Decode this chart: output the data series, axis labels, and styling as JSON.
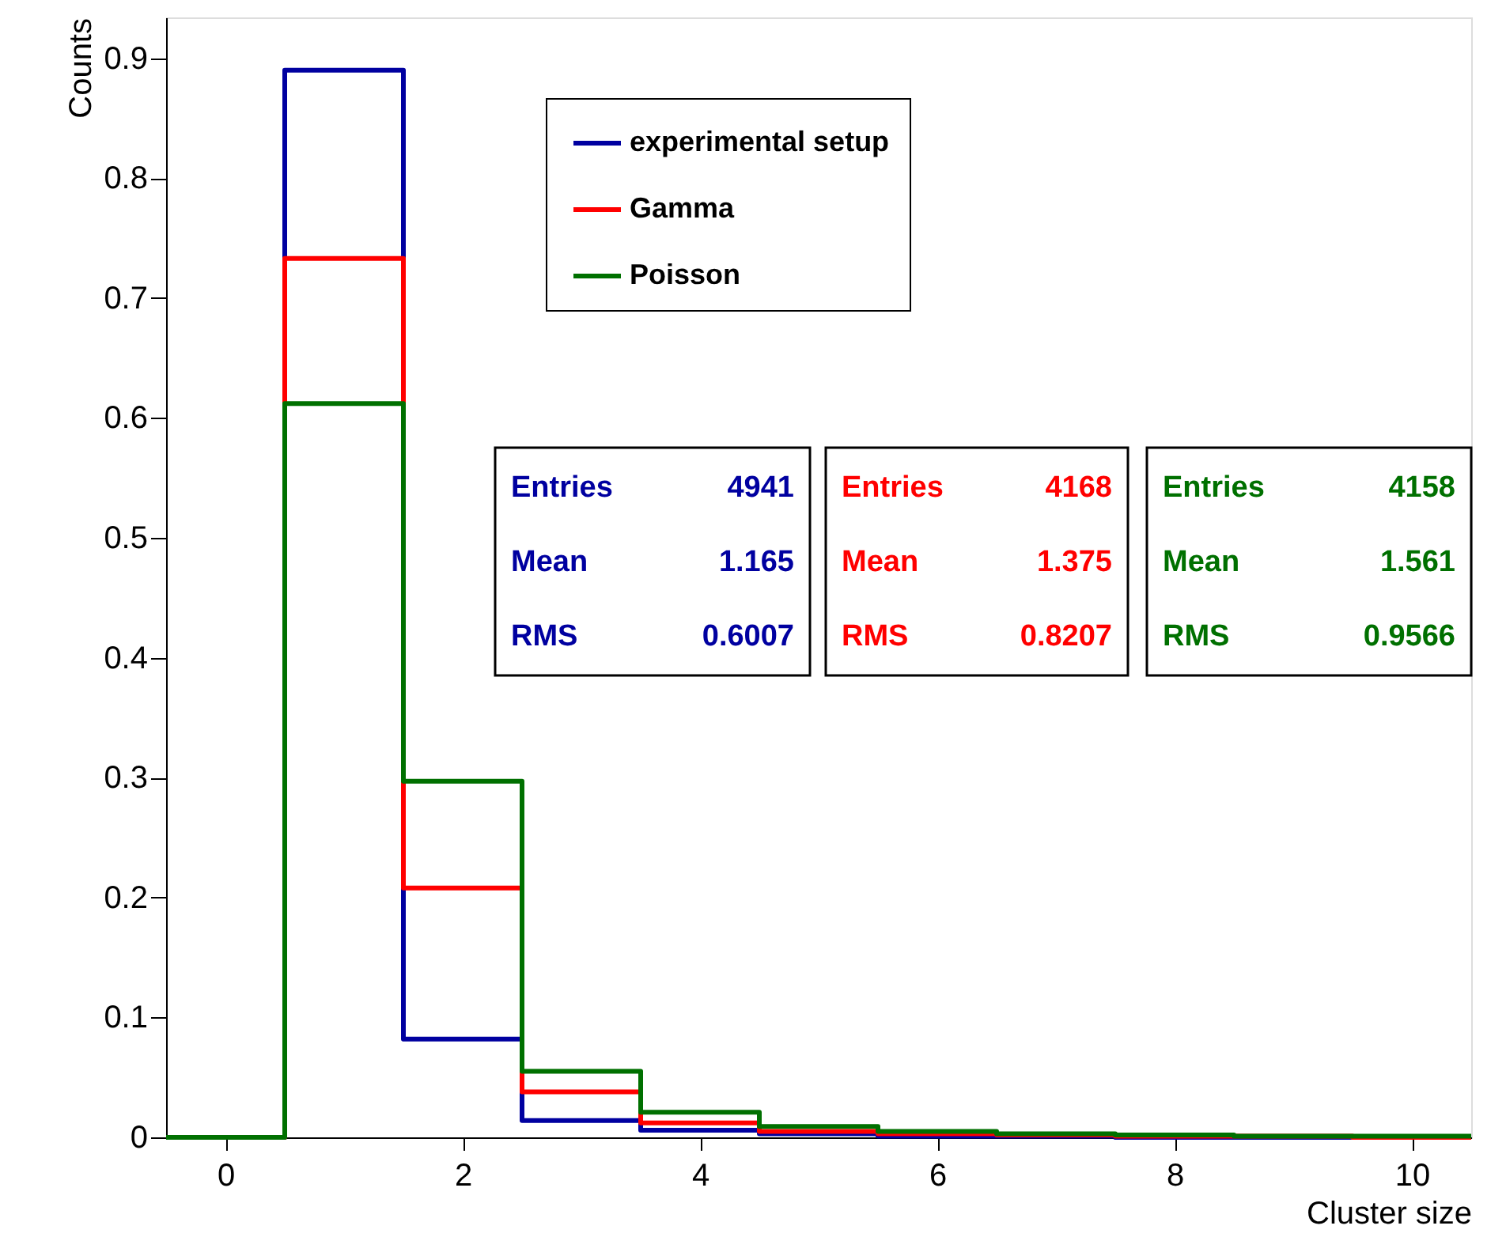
{
  "chart_data": {
    "type": "histogram",
    "xlabel": "Cluster size",
    "ylabel": "Counts",
    "bins": [
      -0.5,
      0.5,
      1.5,
      2.5,
      3.5,
      4.5,
      5.5,
      6.5,
      7.5,
      8.5,
      9.5,
      10.5
    ],
    "series": [
      {
        "name": "experimental setup",
        "color": "#0000a0",
        "values": [
          0,
          0.89,
          0.082,
          0.014,
          0.006,
          0.003,
          0.001,
          0.001,
          0,
          0,
          0
        ]
      },
      {
        "name": "Gamma",
        "color": "#ff0000",
        "values": [
          0,
          0.733,
          0.208,
          0.038,
          0.012,
          0.005,
          0.003,
          0.002,
          0.001,
          0.001,
          0
        ]
      },
      {
        "name": "Poisson",
        "color": "#007000",
        "values": [
          0,
          0.612,
          0.297,
          0.055,
          0.021,
          0.009,
          0.005,
          0.003,
          0.002,
          0.001,
          0.001
        ]
      }
    ],
    "xlim": [
      -0.5,
      10.5
    ],
    "ylim": [
      0,
      0.934
    ],
    "xticks": [
      0,
      2,
      4,
      6,
      8,
      10
    ],
    "yticks": [
      0,
      0.1,
      0.2,
      0.3,
      0.4,
      0.5,
      0.6,
      0.7,
      0.8,
      0.9
    ],
    "grid": false,
    "legend": "top",
    "annotations": [
      "Entries 4941",
      "Mean 1.165",
      "RMS 0.6007",
      "Entries 4168",
      "Mean 1.375",
      "RMS 0.8207",
      "Entries 4158",
      "Mean 1.561",
      "RMS 0.9566"
    ]
  }
}
